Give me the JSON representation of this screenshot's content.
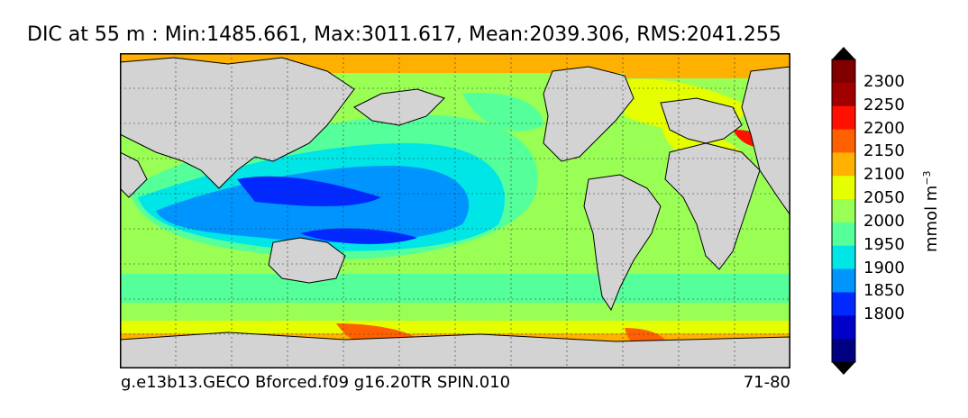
{
  "title": "DIC at 55 m : Min:1485.661, Max:3011.617, Mean:2039.306, RMS:2041.255",
  "footer": {
    "left": "g.e13b13.GECO Bforced.f09 g16.20TR SPIN.010",
    "right": "71-80"
  },
  "colorbar": {
    "units_base": "mmol m",
    "units_exp": "−3",
    "levels": [
      {
        "value": "1800",
        "color": "#0000c8"
      },
      {
        "value": "1850",
        "color": "#0028ff"
      },
      {
        "value": "1900",
        "color": "#0094ff"
      },
      {
        "value": "1950",
        "color": "#00e5e5"
      },
      {
        "value": "2000",
        "color": "#55ff99"
      },
      {
        "value": "2050",
        "color": "#99ff55"
      },
      {
        "value": "2100",
        "color": "#e5ff00"
      },
      {
        "value": "2150",
        "color": "#ffb000"
      },
      {
        "value": "2200",
        "color": "#ff6000"
      },
      {
        "value": "2250",
        "color": "#ff1000"
      },
      {
        "value": "2300",
        "color": "#a00000"
      }
    ],
    "under_color": "#000080",
    "over_color": "#800000",
    "extend_color": "#000000"
  },
  "map": {
    "land_color": "#d3d3d3",
    "gridlines": true
  }
}
